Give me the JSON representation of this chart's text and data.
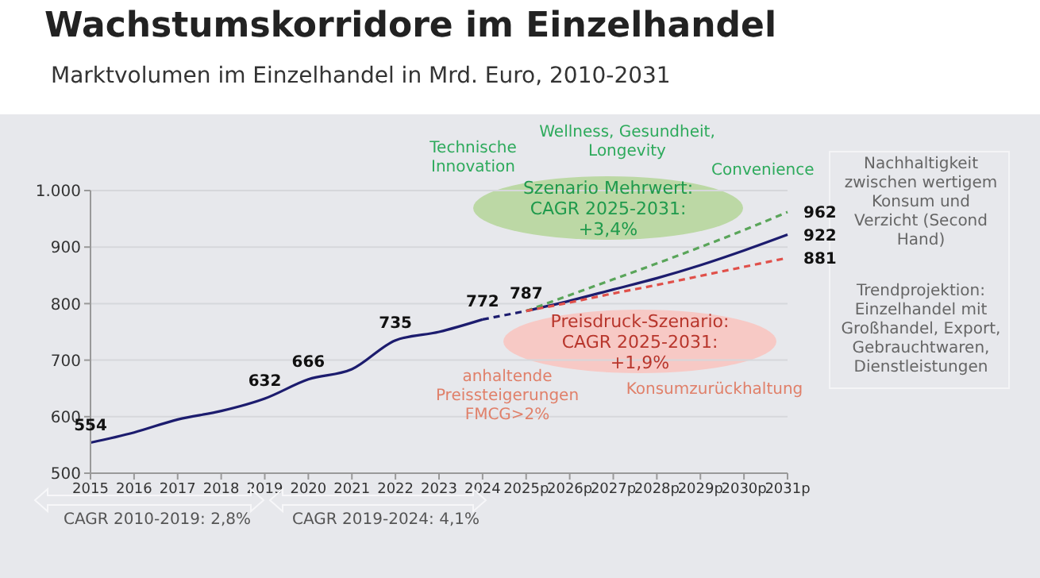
{
  "chart_data": {
    "type": "line",
    "title": "Wachstumskorridore im Einzelhandel",
    "subtitle": "Marktvolumen im Einzelhandel in Mrd. Euro, 2010-2031",
    "categories": [
      "2015",
      "2016",
      "2017",
      "2018",
      "2019",
      "2020",
      "2021",
      "2022",
      "2023",
      "2024",
      "2025p",
      "2026p",
      "2027p",
      "2028p",
      "2029p",
      "2030p",
      "2031p"
    ],
    "series": [
      {
        "color": "#1c1c6e",
        "line_style": "solid",
        "values": [
          554,
          572,
          595,
          610,
          632,
          666,
          684,
          735,
          750,
          772,
          null,
          null,
          null,
          null,
          null,
          null,
          null
        ],
        "value_labels": [
          "554",
          null,
          null,
          null,
          "632",
          "666",
          null,
          "735",
          null,
          "772",
          null,
          null,
          null,
          null,
          null,
          null,
          null
        ]
      },
      {
        "color": "#1c1c6e",
        "line_style": "dashed",
        "values": [
          null,
          null,
          null,
          null,
          null,
          null,
          null,
          null,
          null,
          772,
          787,
          null,
          null,
          null,
          null,
          null,
          null
        ],
        "value_labels": [
          null,
          null,
          null,
          null,
          null,
          null,
          null,
          null,
          null,
          null,
          "787",
          null,
          null,
          null,
          null,
          null,
          null
        ]
      },
      {
        "color": "#1c1c6e",
        "line_style": "solid",
        "values": [
          null,
          null,
          null,
          null,
          null,
          null,
          null,
          null,
          null,
          null,
          787,
          805,
          825,
          845,
          868,
          894,
          922
        ],
        "value_labels": [
          null,
          null,
          null,
          null,
          null,
          null,
          null,
          null,
          null,
          null,
          null,
          null,
          null,
          null,
          null,
          null,
          "922"
        ]
      },
      {
        "color": "#5aa55a",
        "line_style": "dashed",
        "values": [
          null,
          null,
          null,
          null,
          null,
          null,
          null,
          null,
          null,
          null,
          787,
          815,
          843,
          871,
          900,
          930,
          962
        ],
        "value_labels": [
          null,
          null,
          null,
          null,
          null,
          null,
          null,
          null,
          null,
          null,
          null,
          null,
          null,
          null,
          null,
          null,
          "962"
        ]
      },
      {
        "color": "#e0504a",
        "line_style": "dashed",
        "values": [
          null,
          null,
          null,
          null,
          null,
          null,
          null,
          null,
          null,
          null,
          787,
          802,
          818,
          833,
          849,
          865,
          881
        ],
        "value_labels": [
          null,
          null,
          null,
          null,
          null,
          null,
          null,
          null,
          null,
          null,
          null,
          null,
          null,
          null,
          null,
          null,
          "881"
        ]
      }
    ],
    "ylim": [
      500,
      1000
    ],
    "yticks": [
      500,
      600,
      700,
      800,
      900,
      {
        "value": 1000,
        "label": "1.000"
      }
    ],
    "grid": "y",
    "marker": "none",
    "annotations": [
      "Technische Innovation",
      "Wellness, Gesundheit, Longevity",
      "Convenience",
      "Szenario Mehrwert: CAGR 2025-2031: +3,4%",
      "Preisdruck-Szenario: CAGR 2025-2031: +1,9%",
      "anhaltende Preissteigerungen FMCG>2%",
      "Konsumzurückhaltung",
      "Nachhaltigkeit zwischen wertigem Konsum und Verzicht (Second Hand)",
      "Trendprojektion: Einzelhandel mit Großhandel, Export, Gebrauchtwaren, Dienstleistungen",
      "CAGR 2010-2019: 2,8%",
      "CAGR 2019-2024: 4,1%"
    ]
  }
}
